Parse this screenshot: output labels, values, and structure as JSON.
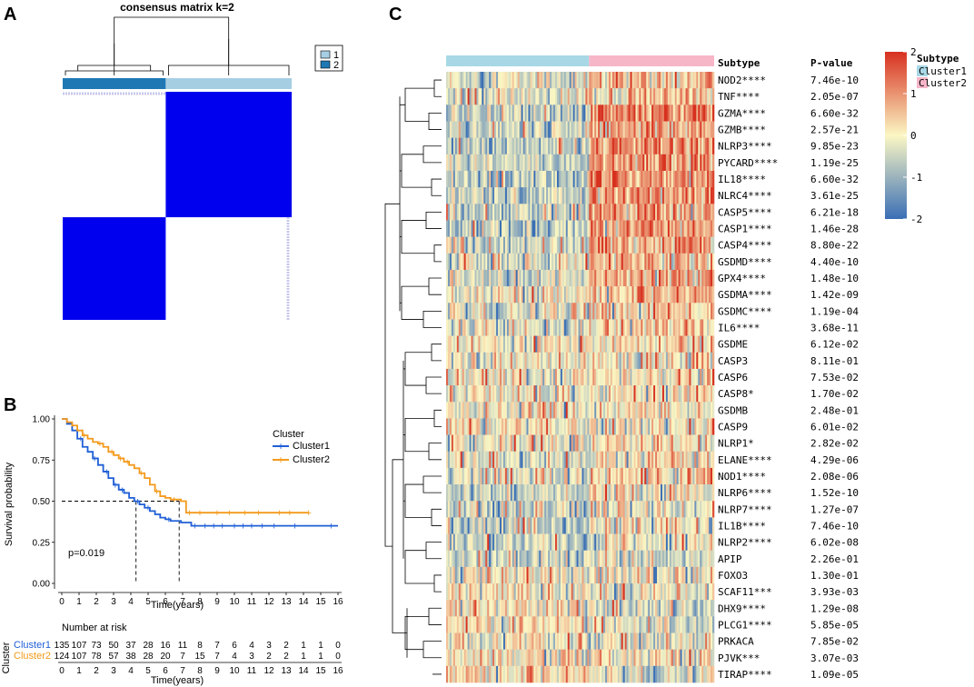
{
  "panel_labels": {
    "a": "A",
    "b": "B",
    "c": "C"
  },
  "colors": {
    "cluster1_bar": "#1f78b4",
    "cluster2_bar": "#a6cee3",
    "consensus_fill": "#0000ee",
    "km_cluster1": "#1f5fd6",
    "km_cluster2": "#f39a1c",
    "heat_low": "#3a6fb5",
    "heat_mid": "#fbf7c4",
    "heat_high": "#d7301f",
    "subtype_cluster1": "#a8d8e6",
    "subtype_cluster2": "#f7b6c8"
  },
  "chart_data": [
    {
      "type": "heatmap",
      "title": "consensus matrix k=2",
      "legend": [
        "1",
        "2"
      ],
      "clusters": [
        {
          "name": "2",
          "fraction": 0.45
        },
        {
          "name": "1",
          "fraction": 0.55
        }
      ]
    },
    {
      "type": "line",
      "title": "",
      "xlabel": "Time(years)",
      "ylabel": "Survival probability",
      "xlim": [
        0,
        16
      ],
      "ylim": [
        0,
        1
      ],
      "xticks": [
        "0",
        "1",
        "2",
        "3",
        "4",
        "5",
        "6",
        "7",
        "8",
        "9",
        "10",
        "11",
        "12",
        "13",
        "14",
        "15",
        "16"
      ],
      "yticks": [
        "0.00",
        "0.25",
        "0.50",
        "0.75",
        "1.00"
      ],
      "legend_title": "Cluster",
      "pvalue": "p=0.019",
      "median_survival": [
        4.3,
        6.8
      ],
      "series": [
        {
          "name": "Cluster1",
          "x": [
            0,
            0.3,
            0.6,
            0.9,
            1.2,
            1.5,
            1.8,
            2.1,
            2.4,
            2.7,
            3.0,
            3.3,
            3.6,
            3.9,
            4.2,
            4.5,
            4.8,
            5.1,
            5.4,
            5.7,
            6.0,
            6.3,
            6.6,
            6.9,
            7.2,
            7.5,
            16
          ],
          "y": [
            1.0,
            0.97,
            0.93,
            0.88,
            0.83,
            0.8,
            0.76,
            0.72,
            0.68,
            0.64,
            0.6,
            0.57,
            0.55,
            0.52,
            0.5,
            0.48,
            0.46,
            0.44,
            0.42,
            0.4,
            0.39,
            0.38,
            0.38,
            0.37,
            0.37,
            0.35,
            0.35
          ],
          "censors": [
            1.1,
            1.9,
            2.6,
            3.1,
            3.5,
            4.4,
            5.0,
            6.2,
            7.7,
            8.3,
            8.8,
            9.3,
            10.0,
            10.5,
            11.0,
            11.6,
            12.3,
            13.5,
            15.6
          ]
        },
        {
          "name": "Cluster2",
          "x": [
            0,
            0.3,
            0.6,
            0.9,
            1.2,
            1.5,
            1.8,
            2.1,
            2.4,
            2.7,
            3.0,
            3.3,
            3.6,
            3.9,
            4.2,
            4.5,
            4.8,
            5.1,
            5.4,
            5.7,
            6.0,
            6.3,
            6.6,
            6.9,
            7.2,
            14.3
          ],
          "y": [
            1.0,
            0.98,
            0.96,
            0.93,
            0.9,
            0.88,
            0.86,
            0.85,
            0.83,
            0.8,
            0.78,
            0.76,
            0.74,
            0.72,
            0.7,
            0.67,
            0.64,
            0.6,
            0.56,
            0.53,
            0.52,
            0.51,
            0.51,
            0.5,
            0.43,
            0.43
          ],
          "censors": [
            1.3,
            2.2,
            2.9,
            3.4,
            3.8,
            4.6,
            5.5,
            6.5,
            7.4,
            8.0,
            9.0,
            9.7,
            10.6,
            11.4,
            12.6,
            13.2,
            14.3
          ]
        }
      ],
      "risk_table": {
        "title": "Number at risk",
        "axis_title": "Cluster",
        "xlabel": "Time(years)",
        "rows": [
          {
            "name": "Cluster1",
            "values": [
              "135",
              "107",
              "73",
              "50",
              "37",
              "28",
              "16",
              "11",
              "8",
              "7",
              "6",
              "4",
              "3",
              "2",
              "1",
              "1",
              "0"
            ]
          },
          {
            "name": "Cluster2",
            "values": [
              "124",
              "107",
              "78",
              "57",
              "38",
              "28",
              "20",
              "7",
              "15",
              "7",
              "4",
              "3",
              "2",
              "2",
              "1",
              "1",
              "0"
            ]
          }
        ]
      }
    },
    {
      "type": "heatmap",
      "title": "",
      "annotation_label": "Subtype",
      "pvalue_header": "P-value",
      "color_scale": {
        "min": -2,
        "max": 2,
        "ticks": [
          "2",
          "1",
          "0",
          "-1",
          "-2"
        ]
      },
      "subtype_legend": {
        "title": "Subtype",
        "entries": [
          "Cluster1",
          "Cluster2"
        ]
      },
      "group_split": 0.53,
      "rows": [
        {
          "gene": "NOD2****",
          "p": "7.46e-10",
          "contrast": 0.5,
          "level": 0.1
        },
        {
          "gene": "TNF****",
          "p": "2.05e-07",
          "contrast": 0.4,
          "level": 0.0
        },
        {
          "gene": "GZMA****",
          "p": "6.60e-32",
          "contrast": 1.0,
          "level": 0.05
        },
        {
          "gene": "GZMB****",
          "p": "2.57e-21",
          "contrast": 0.85,
          "level": 0.0
        },
        {
          "gene": "NLRP3****",
          "p": "9.85e-23",
          "contrast": 0.9,
          "level": 0.0
        },
        {
          "gene": "PYCARD****",
          "p": "1.19e-25",
          "contrast": 0.95,
          "level": 0.0
        },
        {
          "gene": "IL18****",
          "p": "6.60e-32",
          "contrast": 1.0,
          "level": 0.0
        },
        {
          "gene": "NLRC4****",
          "p": "3.61e-25",
          "contrast": 0.95,
          "level": 0.0
        },
        {
          "gene": "CASP5****",
          "p": "6.21e-18",
          "contrast": 0.85,
          "level": 0.0
        },
        {
          "gene": "CASP1****",
          "p": "1.46e-28",
          "contrast": 1.0,
          "level": 0.0
        },
        {
          "gene": "CASP4****",
          "p": "8.80e-22",
          "contrast": 0.9,
          "level": 0.0
        },
        {
          "gene": "GSDMD****",
          "p": "4.40e-10",
          "contrast": 0.6,
          "level": 0.0
        },
        {
          "gene": "GPX4****",
          "p": "1.48e-10",
          "contrast": 0.55,
          "level": 0.0
        },
        {
          "gene": "GSDMA****",
          "p": "1.42e-09",
          "contrast": 0.5,
          "level": 0.05
        },
        {
          "gene": "GSDMC****",
          "p": "1.19e-04",
          "contrast": 0.35,
          "level": 0.0
        },
        {
          "gene": "IL6****",
          "p": "3.68e-11",
          "contrast": 0.45,
          "level": -0.05
        },
        {
          "gene": "GSDME",
          "p": "6.12e-02",
          "contrast": 0.05,
          "level": 0.1
        },
        {
          "gene": "CASP3",
          "p": "8.11e-01",
          "contrast": 0.0,
          "level": 0.0
        },
        {
          "gene": "CASP6",
          "p": "7.53e-02",
          "contrast": 0.05,
          "level": 0.0
        },
        {
          "gene": "CASP8*",
          "p": "1.70e-02",
          "contrast": 0.1,
          "level": 0.0
        },
        {
          "gene": "GSDMB",
          "p": "2.48e-01",
          "contrast": 0.05,
          "level": 0.0
        },
        {
          "gene": "CASP9",
          "p": "6.01e-02",
          "contrast": -0.05,
          "level": 0.0
        },
        {
          "gene": "NLRP1*",
          "p": "2.82e-02",
          "contrast": 0.1,
          "level": 0.0
        },
        {
          "gene": "ELANE****",
          "p": "4.29e-06",
          "contrast": 0.3,
          "level": -0.1
        },
        {
          "gene": "NOD1****",
          "p": "2.08e-06",
          "contrast": 0.3,
          "level": 0.0
        },
        {
          "gene": "NLRP6****",
          "p": "1.52e-10",
          "contrast": 0.4,
          "level": -0.3
        },
        {
          "gene": "NLRP7****",
          "p": "1.27e-07",
          "contrast": 0.35,
          "level": -0.3
        },
        {
          "gene": "IL1B****",
          "p": "7.46e-10",
          "contrast": 0.4,
          "level": -0.4
        },
        {
          "gene": "NLRP2****",
          "p": "6.02e-08",
          "contrast": 0.35,
          "level": -0.35
        },
        {
          "gene": "APIP",
          "p": "2.26e-01",
          "contrast": 0.0,
          "level": -0.4
        },
        {
          "gene": "FOXO3",
          "p": "1.30e-01",
          "contrast": -0.05,
          "level": -0.1
        },
        {
          "gene": "SCAF11***",
          "p": "3.93e-03",
          "contrast": -0.15,
          "level": 0.0
        },
        {
          "gene": "DHX9****",
          "p": "1.29e-08",
          "contrast": -0.3,
          "level": 0.0
        },
        {
          "gene": "PLCG1****",
          "p": "5.85e-05",
          "contrast": -0.25,
          "level": 0.0
        },
        {
          "gene": "PRKACA",
          "p": "7.85e-02",
          "contrast": -0.05,
          "level": 0.0
        },
        {
          "gene": "PJVK***",
          "p": "3.07e-03",
          "contrast": -0.15,
          "level": 0.0
        },
        {
          "gene": "TIRAP****",
          "p": "1.09e-05",
          "contrast": -0.3,
          "level": 0.0
        }
      ]
    }
  ]
}
